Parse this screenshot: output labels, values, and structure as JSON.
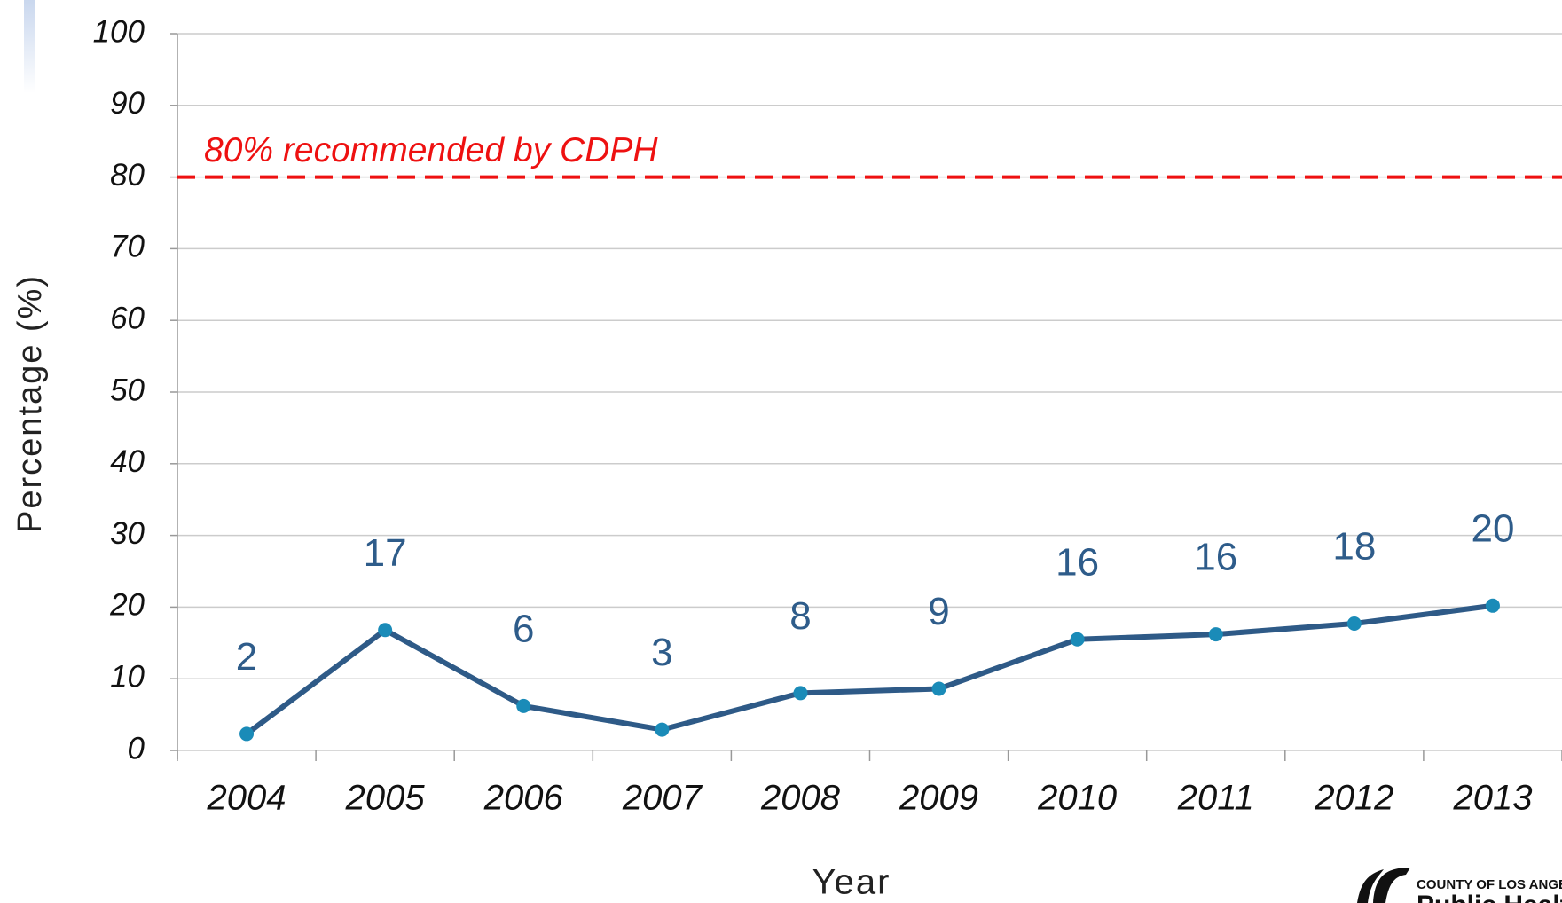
{
  "chart_data": {
    "type": "line",
    "x_label": "Year",
    "y_label": "Percentage (%)",
    "categories": [
      "2004",
      "2005",
      "2006",
      "2007",
      "2008",
      "2009",
      "2010",
      "2011",
      "2012",
      "2013"
    ],
    "values": [
      2.3,
      16.8,
      6.2,
      2.9,
      8.0,
      8.6,
      15.5,
      16.2,
      17.7,
      20.2
    ],
    "value_labels": [
      "2",
      "17",
      "6",
      "3",
      "8",
      "9",
      "16",
      "16",
      "18",
      "20"
    ],
    "color": "#2e5a87",
    "marker_color": "#1a8bb8",
    "label_color": "#2e5c8a",
    "ylim": [
      0,
      100
    ],
    "yticks": [
      0,
      10,
      20,
      30,
      40,
      50,
      60,
      70,
      80,
      90,
      100
    ],
    "grid": true,
    "reference_line": {
      "value": 80,
      "label": "80% recommended by CDPH",
      "color": "#ee1111"
    },
    "logo": {
      "line1": "COUNTY OF LOS ANGELES",
      "line2": "Public Health"
    }
  }
}
